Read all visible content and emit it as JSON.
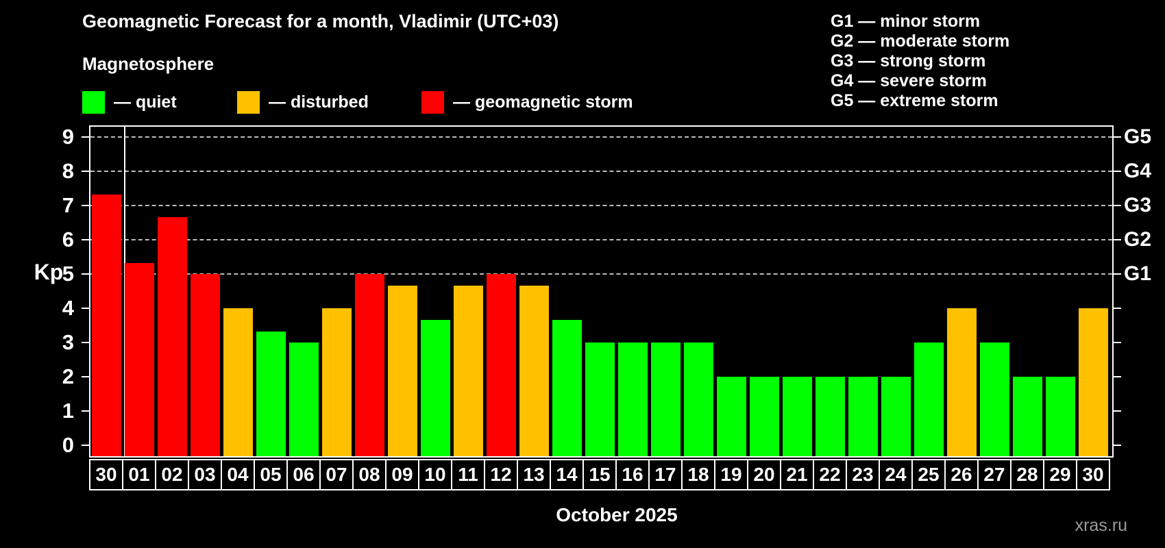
{
  "header": {
    "title": "Geomagnetic Forecast for a month, Vladimir (UTC+03)",
    "subtitle": "Magnetosphere",
    "legend": [
      {
        "key": "quiet",
        "label": "— quiet"
      },
      {
        "key": "disturbed",
        "label": "— disturbed"
      },
      {
        "key": "storm",
        "label": "— geomagnetic storm"
      }
    ],
    "g_scale": [
      "G1 — minor storm",
      "G2 — moderate storm",
      "G3 — strong storm",
      "G4 — severe storm",
      "G5 — extreme storm"
    ]
  },
  "colors": {
    "quiet": "#00ff00",
    "disturbed": "#ffc000",
    "storm": "#ff0000",
    "background": "#000000",
    "text": "#ffffff",
    "grid": "#bdbdbd",
    "watermark": "#9c9c9c"
  },
  "chart_data": {
    "type": "bar",
    "title": "Geomagnetic Forecast for a month, Vladimir (UTC+03)",
    "ylabel": "Kp",
    "xlabel": "October 2025",
    "ylim": [
      -0.4,
      9.4
    ],
    "yticks": [
      0,
      1,
      2,
      3,
      4,
      5,
      6,
      7,
      8,
      9
    ],
    "gridlines_at_kp": [
      5,
      6,
      7,
      8,
      9
    ],
    "grid": "horizontal dashed lines at Kp 5–9 only",
    "legend_position": "top-left",
    "right_axis_labels": [
      {
        "kp": 5,
        "label": "G1"
      },
      {
        "kp": 6,
        "label": "G2"
      },
      {
        "kp": 7,
        "label": "G3"
      },
      {
        "kp": 8,
        "label": "G4"
      },
      {
        "kp": 9,
        "label": "G5"
      }
    ],
    "categories": [
      "30",
      "01",
      "02",
      "03",
      "04",
      "05",
      "06",
      "07",
      "08",
      "09",
      "10",
      "11",
      "12",
      "13",
      "14",
      "15",
      "16",
      "17",
      "18",
      "19",
      "20",
      "21",
      "22",
      "23",
      "24",
      "25",
      "26",
      "27",
      "28",
      "29",
      "30"
    ],
    "values": [
      7.33,
      5.33,
      6.67,
      5,
      4,
      3.33,
      3,
      4,
      5,
      4.67,
      3.67,
      4.67,
      5,
      4.67,
      3.67,
      3,
      3,
      3,
      3,
      2,
      2,
      2,
      2,
      2,
      2,
      3,
      4,
      3,
      2,
      2,
      4
    ],
    "series_status": [
      "storm",
      "storm",
      "storm",
      "storm",
      "disturbed",
      "quiet",
      "quiet",
      "disturbed",
      "storm",
      "disturbed",
      "quiet",
      "disturbed",
      "storm",
      "disturbed",
      "quiet",
      "quiet",
      "quiet",
      "quiet",
      "quiet",
      "quiet",
      "quiet",
      "quiet",
      "quiet",
      "quiet",
      "quiet",
      "quiet",
      "disturbed",
      "quiet",
      "quiet",
      "quiet",
      "disturbed"
    ],
    "month_separator_after_index": 0
  },
  "watermark": "xras.ru"
}
